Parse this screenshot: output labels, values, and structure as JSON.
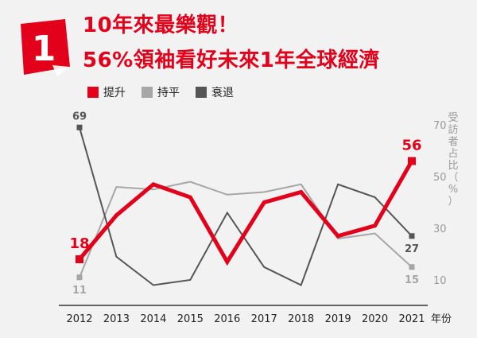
{
  "header": {
    "number": "1",
    "title_line1": "10年來最樂觀！",
    "title_line2": "56%領袖看好未來1年全球經濟"
  },
  "colors": {
    "up": "#e2001a",
    "flat": "#a6a6a6",
    "down": "#555555",
    "axis": "#333333",
    "tick": "#999999"
  },
  "chart_data": {
    "type": "line",
    "title": "",
    "xlabel": "年份",
    "ylabel": "受訪者占比（%）",
    "x": [
      "2012",
      "2013",
      "2014",
      "2015",
      "2016",
      "2017",
      "2018",
      "2019",
      "2020",
      "2021"
    ],
    "ylim": [
      0,
      70
    ],
    "yticks": [
      10,
      30,
      50,
      70
    ],
    "yaxis_position": "right",
    "grid": false,
    "legend_position": "top-left",
    "series": [
      {
        "name": "提升",
        "key": "up",
        "values": [
          18,
          35,
          47,
          42,
          17,
          40,
          44,
          27,
          31,
          56
        ]
      },
      {
        "name": "持平",
        "key": "flat",
        "values": [
          11,
          46,
          45,
          48,
          43,
          44,
          47,
          26,
          28,
          15
        ]
      },
      {
        "name": "衰退",
        "key": "down",
        "values": [
          69,
          19,
          8,
          10,
          36,
          15,
          8,
          47,
          42,
          27
        ]
      }
    ],
    "annotations": [
      {
        "series": "up",
        "index": 0,
        "text": "18"
      },
      {
        "series": "up",
        "index": 9,
        "text": "56"
      },
      {
        "series": "flat",
        "index": 0,
        "text": "11"
      },
      {
        "series": "flat",
        "index": 9,
        "text": "15"
      },
      {
        "series": "down",
        "index": 0,
        "text": "69"
      },
      {
        "series": "down",
        "index": 9,
        "text": "27"
      }
    ]
  }
}
